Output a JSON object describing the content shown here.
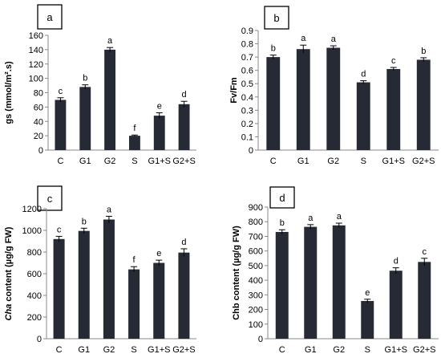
{
  "chart_data": [
    {
      "type": "bar",
      "panel_label": "a",
      "ylabel": "gs (mmol/m².s)",
      "categories": [
        "C",
        "G1",
        "G2",
        "S",
        "G1+S",
        "G2+S"
      ],
      "values": [
        70,
        88,
        140,
        20,
        48,
        64
      ],
      "errors": [
        3,
        3,
        3,
        1,
        4,
        4
      ],
      "significance": [
        "c",
        "b",
        "a",
        "f",
        "e",
        "d"
      ],
      "ylim": [
        0,
        160
      ],
      "yticks": [
        0,
        20,
        40,
        60,
        80,
        100,
        120,
        140,
        160
      ],
      "bar_color": "#262a35"
    },
    {
      "type": "bar",
      "panel_label": "b",
      "ylabel": "Fv/Fm",
      "categories": [
        "C",
        "G1",
        "G2",
        "S",
        "G1+S",
        "G2+S"
      ],
      "values": [
        0.7,
        0.76,
        0.77,
        0.51,
        0.61,
        0.68
      ],
      "errors": [
        0.015,
        0.03,
        0.015,
        0.012,
        0.012,
        0.015
      ],
      "significance": [
        "b",
        "a",
        "a",
        "d",
        "c",
        "b"
      ],
      "ylim": [
        0,
        0.9
      ],
      "yticks": [
        "0",
        "0.1",
        "0.2",
        "0.3",
        "0.4",
        "0.5",
        "0.6",
        "0.7",
        "0.8",
        "0.9"
      ],
      "bar_color": "#262a35"
    },
    {
      "type": "bar",
      "panel_label": "c",
      "ylabel_italic": "Cha",
      "ylabel_rest": " content (µg/g FW)",
      "categories": [
        "C",
        "G1",
        "G2",
        "S",
        "G1+S",
        "G2+S"
      ],
      "values": [
        920,
        995,
        1100,
        640,
        700,
        795
      ],
      "errors": [
        25,
        25,
        30,
        25,
        25,
        35
      ],
      "significance": [
        "c",
        "b",
        "a",
        "f",
        "e",
        "d"
      ],
      "ylim": [
        0,
        1200
      ],
      "yticks": [
        0,
        200,
        400,
        600,
        800,
        1000,
        1200
      ],
      "bar_color": "#262a35"
    },
    {
      "type": "bar",
      "panel_label": "d",
      "ylabel": "Chb content (µg/g FW)",
      "categories": [
        "C",
        "G1",
        "G2",
        "S",
        "G1+S",
        "G2+S"
      ],
      "values": [
        730,
        765,
        775,
        258,
        465,
        525
      ],
      "errors": [
        15,
        15,
        15,
        12,
        20,
        25
      ],
      "significance": [
        "b",
        "a",
        "a",
        "e",
        "d",
        "c"
      ],
      "ylim": [
        0,
        900
      ],
      "yticks": [
        0,
        100,
        200,
        300,
        400,
        500,
        600,
        700,
        800,
        900
      ],
      "bar_color": "#262a35"
    }
  ]
}
